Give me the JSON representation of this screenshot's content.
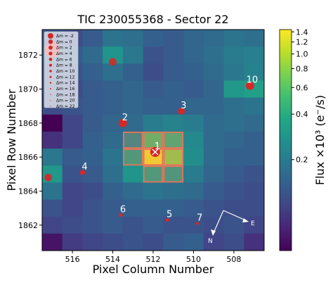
{
  "chart_data": {
    "type": "heatmap",
    "title": "TIC 230055368 - Sector 22",
    "xlabel": "Pixel Column Number",
    "ylabel": "Pixel Row Number",
    "x_columns": [
      517,
      516,
      515,
      514,
      513,
      512,
      511,
      510,
      509,
      508,
      507
    ],
    "y_rows": [
      1873,
      1872,
      1871,
      1870,
      1869,
      1868,
      1867,
      1866,
      1865,
      1864,
      1863,
      1862,
      1861
    ],
    "x_ticks": [
      516,
      514,
      512,
      510,
      508
    ],
    "y_ticks": [
      1862,
      1864,
      1866,
      1868,
      1870,
      1872
    ],
    "x_axis_inverted": true,
    "flux_grid": [
      [
        0.12,
        0.11,
        0.13,
        0.18,
        0.17,
        0.14,
        0.13,
        0.15,
        0.16,
        0.18,
        0.17
      ],
      [
        0.14,
        0.13,
        0.16,
        0.28,
        0.19,
        0.12,
        0.13,
        0.15,
        0.17,
        0.2,
        0.21
      ],
      [
        0.12,
        0.12,
        0.14,
        0.17,
        0.14,
        0.11,
        0.13,
        0.14,
        0.16,
        0.19,
        0.22
      ],
      [
        0.12,
        0.11,
        0.13,
        0.14,
        0.15,
        0.13,
        0.14,
        0.13,
        0.15,
        0.3,
        0.33
      ],
      [
        0.11,
        0.12,
        0.13,
        0.14,
        0.15,
        0.14,
        0.14,
        0.15,
        0.15,
        0.17,
        0.18
      ],
      [
        0.05,
        0.1,
        0.13,
        0.15,
        0.16,
        0.2,
        0.22,
        0.2,
        0.16,
        0.17,
        0.16
      ],
      [
        0.08,
        0.1,
        0.14,
        0.16,
        0.25,
        0.55,
        0.45,
        0.24,
        0.16,
        0.15,
        0.14
      ],
      [
        0.19,
        0.13,
        0.14,
        0.18,
        0.35,
        1.4,
        0.8,
        0.26,
        0.16,
        0.14,
        0.14
      ],
      [
        0.3,
        0.12,
        0.13,
        0.17,
        0.28,
        0.36,
        0.33,
        0.2,
        0.15,
        0.13,
        0.12
      ],
      [
        0.18,
        0.1,
        0.11,
        0.14,
        0.16,
        0.18,
        0.17,
        0.16,
        0.13,
        0.12,
        0.11
      ],
      [
        0.12,
        0.1,
        0.12,
        0.13,
        0.14,
        0.14,
        0.14,
        0.13,
        0.12,
        0.11,
        0.11
      ],
      [
        0.1,
        0.11,
        0.12,
        0.13,
        0.12,
        0.13,
        0.12,
        0.12,
        0.11,
        0.12,
        0.1
      ],
      [
        0.06,
        0.09,
        0.1,
        0.11,
        0.12,
        0.11,
        0.13,
        0.14,
        0.1,
        0.11,
        0.08
      ]
    ],
    "aperture_pixels": [
      [
        513,
        1867
      ],
      [
        512,
        1867
      ],
      [
        511,
        1867
      ],
      [
        513,
        1866
      ],
      [
        512,
        1866
      ],
      [
        511,
        1866
      ],
      [
        512,
        1865
      ],
      [
        511,
        1865
      ]
    ],
    "stars": [
      {
        "label": "1",
        "x": 511.9,
        "y": 1866.3,
        "dm": 0,
        "target": true
      },
      {
        "label": "2",
        "x": 513.5,
        "y": 1868.0,
        "dm": 2
      },
      {
        "label": "3",
        "x": 510.6,
        "y": 1868.7,
        "dm": 4
      },
      {
        "label": "4",
        "x": 515.5,
        "y": 1865.1,
        "dm": 6
      },
      {
        "label": "5",
        "x": 511.3,
        "y": 1862.3,
        "dm": 8
      },
      {
        "label": "6",
        "x": 513.6,
        "y": 1862.6,
        "dm": 8
      },
      {
        "label": "7",
        "x": 509.8,
        "y": 1862.1,
        "dm": 9
      },
      {
        "label": "10",
        "x": 507.2,
        "y": 1870.2,
        "dm": 2
      }
    ],
    "extra_markers": [
      {
        "x": 517.0,
        "y": 1872.3,
        "dm": -2
      },
      {
        "x": 514.0,
        "y": 1871.6,
        "dm": 3
      },
      {
        "x": 517.2,
        "y": 1864.8,
        "dm": 3
      }
    ],
    "legend": {
      "placement": "top-left",
      "entries": [
        "Δm = -2",
        "Δm = 0",
        "Δm = 2",
        "Δm = 4",
        "Δm = 6",
        "Δm = 8",
        "Δm = 10",
        "Δm = 12",
        "Δm = 14",
        "Δm = 16",
        "Δm = 18",
        "Δm = 20",
        "Δm = 22"
      ]
    },
    "colorbar": {
      "label": "Flux ×10³ (e⁻/s)",
      "scale": "log",
      "range": [
        0.05,
        1.45
      ],
      "ticks": [
        {
          "value": 1.4,
          "label": "1.4"
        },
        {
          "value": 1.2,
          "label": "1.2"
        },
        {
          "value": 1.0,
          "label": "1.0"
        },
        {
          "value": 0.8,
          "label": "0.8"
        },
        {
          "value": 0.6,
          "label": "0.6"
        },
        {
          "value": 0.4,
          "label": "0.4"
        },
        {
          "value": 0.2,
          "label": "0.2"
        }
      ],
      "colormap": "viridis"
    },
    "compass": {
      "north_label": "N",
      "east_label": "E"
    },
    "colors": {
      "marker": "#d62728",
      "aperture": "#e8735a"
    }
  }
}
